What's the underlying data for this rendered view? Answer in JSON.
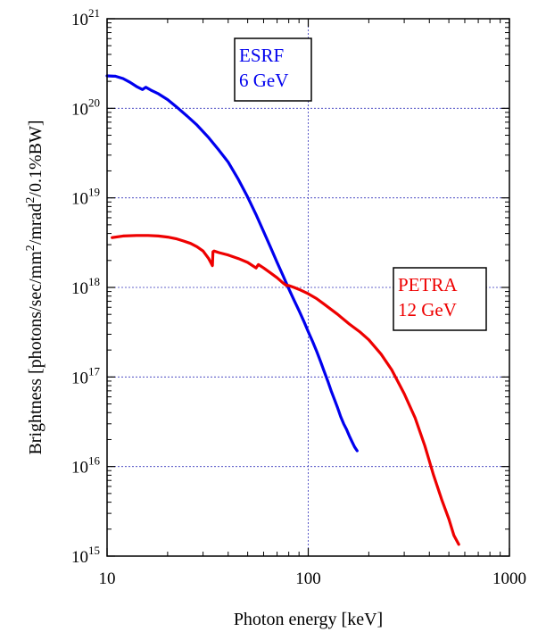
{
  "chart_data": {
    "type": "line",
    "xlabel": "Photon energy [keV]",
    "ylabel": {
      "parts": [
        {
          "text": "Brightness [photons/sec/mm",
          "sup": false
        },
        {
          "text": "2",
          "sup": true
        },
        {
          "text": "/mrad",
          "sup": false
        },
        {
          "text": "2",
          "sup": true
        },
        {
          "text": "/0.1%BW]",
          "sup": false
        }
      ]
    },
    "x_scale": "log",
    "y_scale": "log",
    "xlim": [
      10,
      1000
    ],
    "ylim": [
      1000000000000000.0,
      1e+21
    ],
    "grid": true,
    "x_ticks": [
      {
        "value": 10,
        "label": "10"
      },
      {
        "value": 100,
        "label": "100"
      },
      {
        "value": 1000,
        "label": "1000"
      }
    ],
    "y_ticks": [
      {
        "value": 1000000000000000.0,
        "base": "10",
        "exp": "15"
      },
      {
        "value": 1e+16,
        "base": "10",
        "exp": "16"
      },
      {
        "value": 1e+17,
        "base": "10",
        "exp": "17"
      },
      {
        "value": 1e+18,
        "base": "10",
        "exp": "18"
      },
      {
        "value": 1e+19,
        "base": "10",
        "exp": "19"
      },
      {
        "value": 1e+20,
        "base": "10",
        "exp": "20"
      },
      {
        "value": 1e+21,
        "base": "10",
        "exp": "21"
      }
    ],
    "series": [
      {
        "name_lines": [
          "ESRF",
          "6 GeV"
        ],
        "color": "#0000ee",
        "legend_position": "top-center",
        "x": [
          10,
          11,
          12,
          13,
          14,
          15,
          15.6,
          16.5,
          18,
          20,
          22,
          25,
          28,
          32,
          36,
          40,
          45,
          50,
          55,
          60,
          65,
          70,
          75,
          80,
          85,
          90,
          95,
          100,
          105,
          110,
          115,
          120,
          125,
          130,
          135,
          140,
          145,
          150,
          155,
          160,
          165,
          170,
          175
        ],
        "y": [
          2.3e+20,
          2.28e+20,
          2.15e+20,
          1.95e+20,
          1.75e+20,
          1.62e+20,
          1.72e+20,
          1.6e+20,
          1.45e+20,
          1.25e+20,
          1.05e+20,
          8.2e+19,
          6.5e+19,
          4.7e+19,
          3.4e+19,
          2.5e+19,
          1.6e+19,
          1.02e+19,
          6.5e+18,
          4.2e+18,
          2.8e+18,
          1.9e+18,
          1.35e+18,
          9.7e+17,
          7.2e+17,
          5.5e+17,
          4.2e+17,
          3.2e+17,
          2.5e+17,
          1.95e+17,
          1.5e+17,
          1.15e+17,
          9e+16,
          7e+16,
          5.6e+16,
          4.5e+16,
          3.6e+16,
          3e+16,
          2.6e+16,
          2.2e+16,
          1.9e+16,
          1.65e+16,
          1.5e+16
        ]
      },
      {
        "name_lines": [
          "PETRA",
          "12 GeV"
        ],
        "color": "#ee0000",
        "legend_position": "right",
        "x": [
          10.6,
          12,
          14,
          16,
          18,
          20,
          22,
          24,
          26,
          28,
          30,
          32,
          33.4,
          33.6,
          34,
          36,
          40,
          45,
          50,
          55,
          56.5,
          60,
          65,
          70,
          75,
          78,
          80,
          85,
          90,
          100,
          110,
          120,
          140,
          160,
          180,
          200,
          230,
          260,
          300,
          340,
          380,
          420,
          460,
          500,
          530,
          560
        ],
        "y": [
          3.6e+18,
          3.75e+18,
          3.8e+18,
          3.8e+18,
          3.75e+18,
          3.65e+18,
          3.5e+18,
          3.3e+18,
          3.1e+18,
          2.85e+18,
          2.55e+18,
          2.1e+18,
          1.75e+18,
          2.5e+18,
          2.55e+18,
          2.45e+18,
          2.3e+18,
          2.1e+18,
          1.9e+18,
          1.65e+18,
          1.8e+18,
          1.65e+18,
          1.45e+18,
          1.28e+18,
          1.12e+18,
          1.05e+18,
          1.05e+18,
          1e+18,
          9.5e+17,
          8.5e+17,
          7.5e+17,
          6.5e+17,
          5e+17,
          3.9e+17,
          3.2e+17,
          2.6e+17,
          1.8e+17,
          1.2e+17,
          6.5e+16,
          3.5e+16,
          1.7e+16,
          8000000000000000.0,
          4300000000000000.0,
          2600000000000000.0,
          1700000000000000.0,
          1350000000000000.0
        ]
      }
    ]
  }
}
